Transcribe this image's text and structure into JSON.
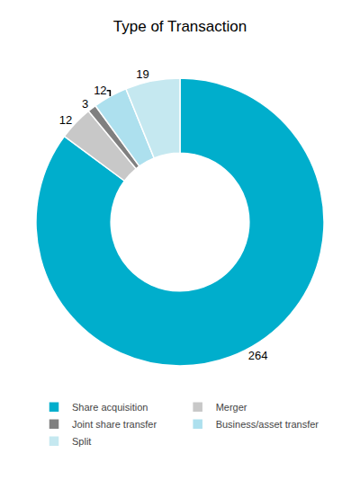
{
  "chart_data": {
    "type": "pie",
    "title": "Type of Transaction",
    "categories": [
      "Share acquisition",
      "Merger",
      "Joint share transfer",
      "Business/asset transfer",
      "Split"
    ],
    "values": [
      264,
      12,
      3,
      12,
      19
    ],
    "colors": [
      "#00AECC",
      "#C8C8C8",
      "#808080",
      "#ADE0EE",
      "#C5E8F0"
    ],
    "data_labels": true,
    "legend": "bottom"
  }
}
